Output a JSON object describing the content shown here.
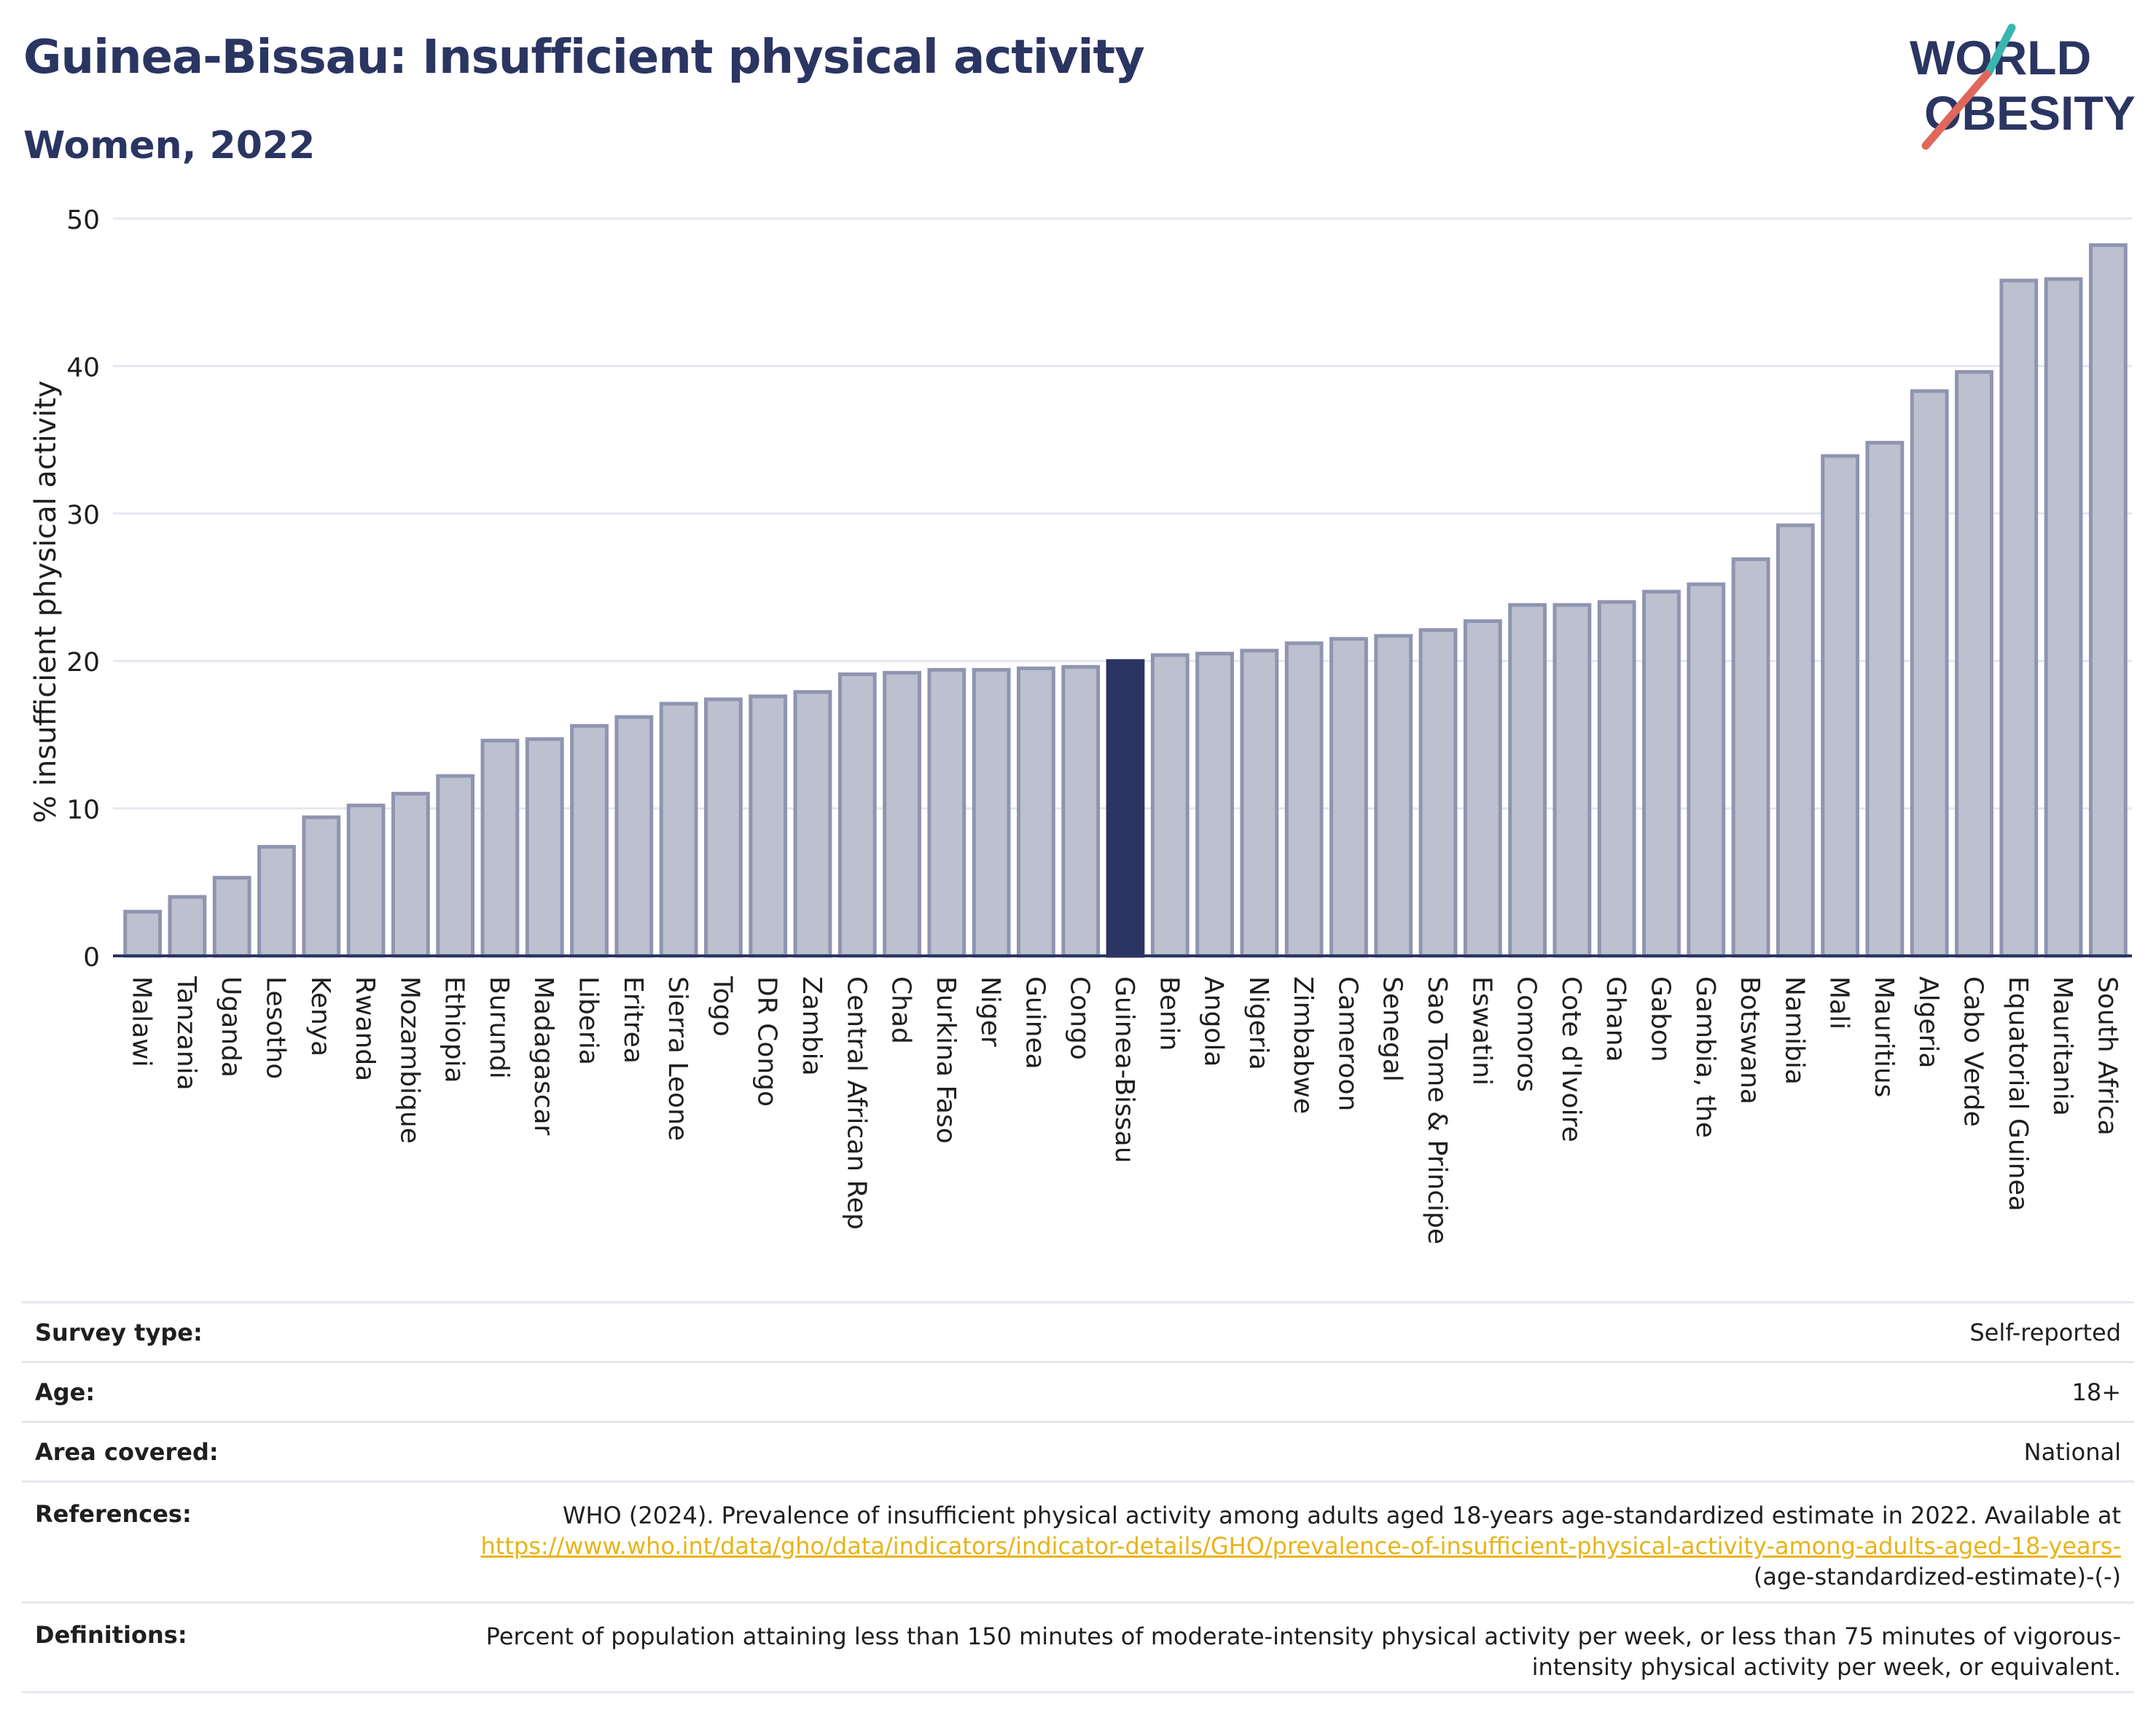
{
  "header": {
    "title": "Guinea-Bissau: Insufficient physical activity",
    "subtitle": "Women, 2022",
    "logo_line1": "WORLD",
    "logo_line2": "OBESITY"
  },
  "colors": {
    "title": "#2b3562",
    "bar": "#bcc0cf",
    "bar_border": "#8f95b0",
    "highlight": "#2b3562",
    "axis": "#2b3562",
    "grid": "#e6e7ee",
    "link": "#e8b417",
    "logo_teal": "#3ab5b0",
    "logo_red": "#e0685a"
  },
  "chart_data": {
    "type": "bar",
    "ylabel": "% insufficient physical activity",
    "xlabel": "",
    "ylim": [
      0,
      50
    ],
    "yticks": [
      0,
      10,
      20,
      30,
      40,
      50
    ],
    "grid": true,
    "highlight": "Guinea-Bissau",
    "categories": [
      "Malawi",
      "Tanzania",
      "Uganda",
      "Lesotho",
      "Kenya",
      "Rwanda",
      "Mozambique",
      "Ethiopia",
      "Burundi",
      "Madagascar",
      "Liberia",
      "Eritrea",
      "Sierra Leone",
      "Togo",
      "DR Congo",
      "Zambia",
      "Central African Rep",
      "Chad",
      "Burkina Faso",
      "Niger",
      "Guinea",
      "Congo",
      "Guinea-Bissau",
      "Benin",
      "Angola",
      "Nigeria",
      "Zimbabwe",
      "Cameroon",
      "Senegal",
      "Sao Tome & Principe",
      "Eswatini",
      "Comoros",
      "Cote d'Ivoire",
      "Ghana",
      "Gabon",
      "Gambia, the",
      "Botswana",
      "Namibia",
      "Mali",
      "Mauritius",
      "Algeria",
      "Cabo Verde",
      "Equatorial Guinea",
      "Mauritania",
      "South Africa"
    ],
    "values": [
      3.0,
      4.0,
      5.3,
      7.4,
      9.4,
      10.2,
      11.0,
      12.2,
      14.6,
      14.7,
      15.6,
      16.2,
      17.1,
      17.4,
      17.6,
      17.9,
      19.1,
      19.2,
      19.4,
      19.4,
      19.5,
      19.6,
      20.0,
      20.4,
      20.5,
      20.7,
      21.2,
      21.5,
      21.7,
      22.1,
      22.7,
      23.8,
      23.8,
      24.0,
      24.7,
      25.2,
      26.9,
      29.2,
      33.9,
      34.8,
      38.3,
      39.6,
      45.8,
      45.9,
      48.2
    ]
  },
  "meta": [
    {
      "label": "Survey type:",
      "value": "Self-reported"
    },
    {
      "label": "Age:",
      "value": "18+"
    },
    {
      "label": "Area covered:",
      "value": "National"
    },
    {
      "label": "References:",
      "value": "WHO (2024). Prevalence of insufficient physical activity among adults aged 18-years age-standardized estimate in 2022. Available at",
      "link": "https://www.who.int/data/gho/data/indicators/indicator-details/GHO/prevalence-of-insufficient-physical-activity-among-adults-aged-18-years-",
      "link_suffix": "(age-standardized-estimate)-(-)"
    },
    {
      "label": "Definitions:",
      "value": "Percent of population attaining less than 150 minutes of moderate-intensity physical activity per week, or less than 75 minutes of vigorous-intensity physical activity per week, or equivalent."
    }
  ]
}
